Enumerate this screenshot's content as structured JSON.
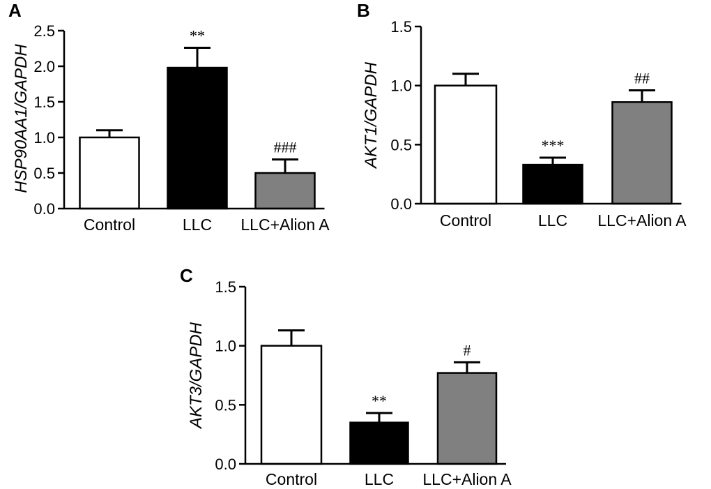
{
  "chart_data": [
    {
      "type": "bar",
      "panel": "A",
      "title": "",
      "xlabel": "",
      "ylabel": "HSP90AA1/GAPDH",
      "categories": [
        "Control",
        "LLC",
        "LLC+Alion A"
      ],
      "values": [
        1.0,
        1.98,
        0.5
      ],
      "errors": [
        0.1,
        0.28,
        0.19
      ],
      "significance": [
        "",
        "**",
        "###"
      ],
      "ylim": [
        0,
        2.5
      ],
      "yticks": [
        0.0,
        0.5,
        1.0,
        1.5,
        2.0,
        2.5
      ],
      "ytick_labels": [
        "0.0",
        "0.5",
        "1.0",
        "1.5",
        "2.0",
        "2.5"
      ],
      "colors": [
        "#ffffff",
        "#000000",
        "#808080"
      ]
    },
    {
      "type": "bar",
      "panel": "B",
      "title": "",
      "xlabel": "",
      "ylabel": "AKT1/GAPDH",
      "categories": [
        "Control",
        "LLC",
        "LLC+Alion A"
      ],
      "values": [
        1.0,
        0.33,
        0.86
      ],
      "errors": [
        0.1,
        0.06,
        0.1
      ],
      "significance": [
        "",
        "***",
        "##"
      ],
      "ylim": [
        0,
        1.5
      ],
      "yticks": [
        0.0,
        0.5,
        1.0,
        1.5
      ],
      "ytick_labels": [
        "0.0",
        "0.5",
        "1.0",
        "1.5"
      ],
      "colors": [
        "#ffffff",
        "#000000",
        "#808080"
      ]
    },
    {
      "type": "bar",
      "panel": "C",
      "title": "",
      "xlabel": "",
      "ylabel": "AKT3/GAPDH",
      "categories": [
        "Control",
        "LLC",
        "LLC+Alion A"
      ],
      "values": [
        1.0,
        0.35,
        0.77
      ],
      "errors": [
        0.13,
        0.08,
        0.09
      ],
      "significance": [
        "",
        "**",
        "#"
      ],
      "ylim": [
        0,
        1.5
      ],
      "yticks": [
        0.0,
        0.5,
        1.0,
        1.5
      ],
      "ytick_labels": [
        "0.0",
        "0.5",
        "1.0",
        "1.5"
      ],
      "colors": [
        "#ffffff",
        "#000000",
        "#808080"
      ]
    }
  ]
}
